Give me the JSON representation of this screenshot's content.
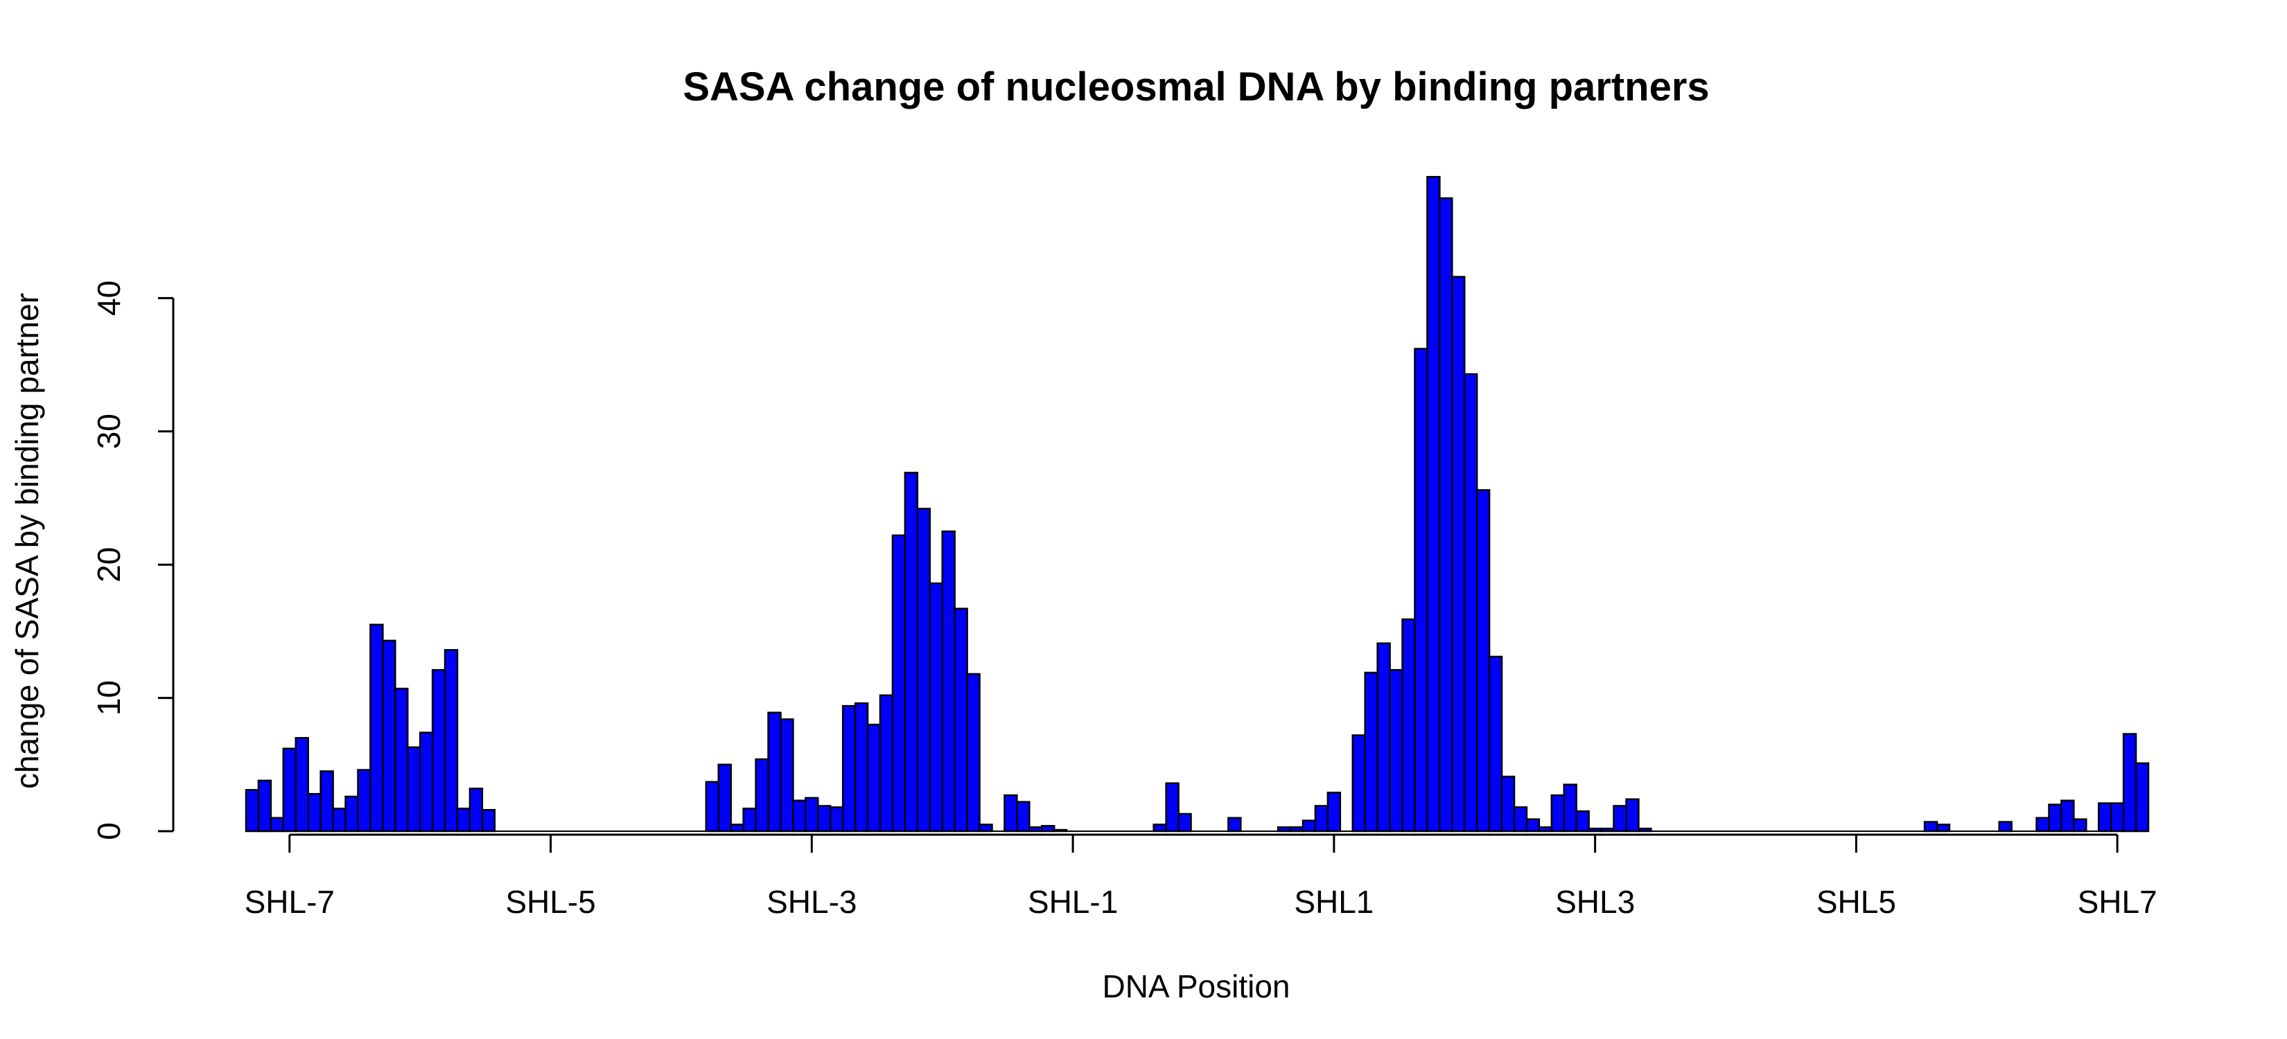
{
  "chart_data": {
    "type": "bar",
    "title": "SASA change of  nucleosmal DNA by binding partners",
    "xlabel": "DNA Position",
    "ylabel": "change of SASA by binding partner",
    "ylim": [
      0,
      50
    ],
    "yticks": [
      0,
      10,
      20,
      30,
      40
    ],
    "xticks": [
      {
        "label": "SHL-7",
        "index": 3
      },
      {
        "label": "SHL-5",
        "index": 24
      },
      {
        "label": "SHL-3",
        "index": 45
      },
      {
        "label": "SHL-1",
        "index": 66
      },
      {
        "label": "SHL1",
        "index": 87
      },
      {
        "label": "SHL3",
        "index": 108
      },
      {
        "label": "SHL5",
        "index": 129
      },
      {
        "label": "SHL7",
        "index": 150
      }
    ],
    "bar_color": "#0000ff",
    "grid": false,
    "values": [
      3.1,
      3.8,
      1.0,
      6.2,
      7.0,
      2.8,
      4.5,
      1.7,
      2.6,
      4.6,
      15.5,
      14.3,
      10.7,
      6.3,
      7.4,
      12.1,
      13.6,
      1.7,
      3.2,
      1.6,
      0,
      0,
      0,
      0,
      0,
      0,
      0,
      0,
      0,
      0,
      0,
      0,
      0,
      0,
      0,
      0,
      0,
      3.7,
      5.0,
      0.5,
      1.7,
      5.4,
      8.9,
      8.4,
      2.3,
      2.5,
      1.9,
      1.8,
      9.4,
      9.6,
      8.0,
      10.2,
      22.2,
      26.9,
      24.2,
      18.6,
      22.5,
      16.7,
      11.8,
      0.5,
      0,
      2.7,
      2.2,
      0.3,
      0.4,
      0.1,
      0,
      0,
      0,
      0,
      0,
      0,
      0,
      0.5,
      3.6,
      1.3,
      0,
      0,
      0,
      1.0,
      0,
      0,
      0,
      0.3,
      0.3,
      0.8,
      1.9,
      2.9,
      0,
      7.2,
      11.9,
      14.1,
      12.1,
      15.9,
      36.2,
      49.1,
      47.5,
      41.6,
      34.3,
      25.6,
      13.1,
      4.1,
      1.8,
      0.9,
      0.3,
      2.7,
      3.5,
      1.5,
      0.2,
      0.2,
      1.9,
      2.4,
      0.2,
      0,
      0,
      0,
      0,
      0,
      0,
      0,
      0,
      0,
      0,
      0,
      0,
      0,
      0,
      0,
      0,
      0,
      0,
      0,
      0,
      0,
      0,
      0.7,
      0.5,
      0,
      0,
      0,
      0,
      0.7,
      0,
      0,
      1.0,
      2.0,
      2.3,
      0.9,
      0,
      2.1,
      2.1,
      7.3,
      5.1
    ]
  }
}
